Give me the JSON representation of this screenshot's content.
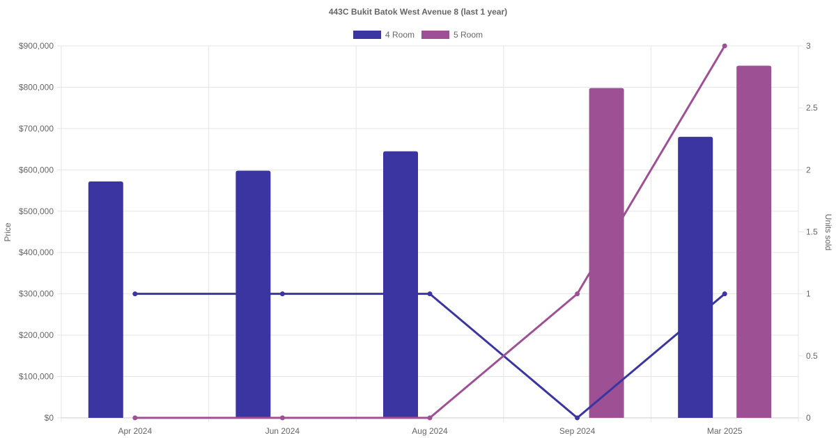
{
  "chart_data": {
    "type": "bar",
    "title": "443C Bukit Batok West Avenue 8 (last 1 year)",
    "categories": [
      "Apr 2024",
      "Jun 2024",
      "Aug 2024",
      "Sep 2024",
      "Mar 2025"
    ],
    "ylabel": "Price",
    "y2label": "Units sold",
    "ylim": [
      0,
      900000
    ],
    "y_ticks": [
      "$0",
      "$100,000",
      "$200,000",
      "$300,000",
      "$400,000",
      "$500,000",
      "$600,000",
      "$700,000",
      "$800,000",
      "$900,000"
    ],
    "y2lim": [
      0,
      3
    ],
    "y2_ticks": [
      "0",
      "0.5",
      "1",
      "1.5",
      "2",
      "2.5",
      "3"
    ],
    "legend_position": "top-center",
    "grid": true,
    "series": [
      {
        "name": "4 Room",
        "color": "#3a35a0",
        "prices": [
          572000,
          598000,
          645000,
          null,
          680000
        ],
        "units_sold": [
          1,
          1,
          1,
          0,
          1
        ]
      },
      {
        "name": "5 Room",
        "color": "#9d5094",
        "prices": [
          null,
          null,
          null,
          798000,
          852000
        ],
        "units_sold": [
          0,
          0,
          0,
          1,
          3
        ]
      }
    ]
  }
}
